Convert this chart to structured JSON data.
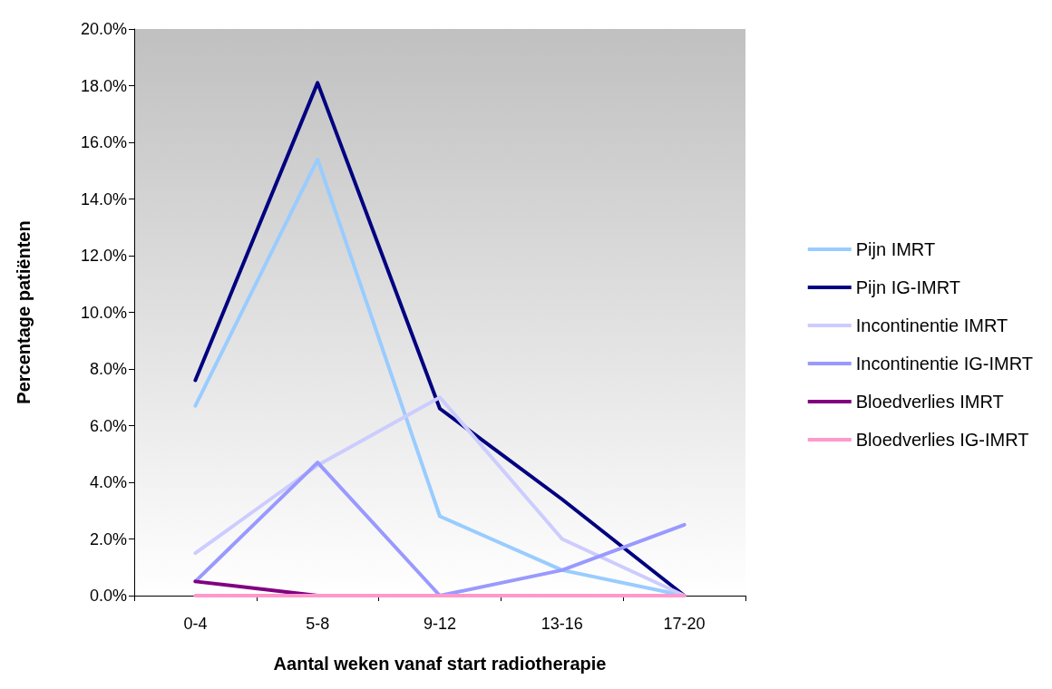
{
  "chart_data": {
    "type": "line",
    "xlabel": "Aantal weken vanaf start radiotherapie",
    "ylabel": "Percentage patiënten",
    "categories": [
      "0-4",
      "5-8",
      "9-12",
      "13-16",
      "17-20"
    ],
    "ylim": [
      0,
      20
    ],
    "yticks": [
      {
        "value": 0,
        "label": "0.0%"
      },
      {
        "value": 2,
        "label": "2.0%"
      },
      {
        "value": 4,
        "label": "4.0%"
      },
      {
        "value": 6,
        "label": "6.0%"
      },
      {
        "value": 8,
        "label": "8.0%"
      },
      {
        "value": 10,
        "label": "10.0%"
      },
      {
        "value": 12,
        "label": "12.0%"
      },
      {
        "value": 14,
        "label": "14.0%"
      },
      {
        "value": 16,
        "label": "16.0%"
      },
      {
        "value": 18,
        "label": "18.0%"
      },
      {
        "value": 20,
        "label": "20.0%"
      }
    ],
    "grid": false,
    "legend": "right",
    "marker": "none",
    "line_style": "solid",
    "series": [
      {
        "name": "Pijn IMRT",
        "color": "#99ccff",
        "values": [
          6.7,
          15.4,
          2.8,
          0.9,
          0
        ]
      },
      {
        "name": "Pijn IG-IMRT",
        "color": "#000080",
        "values": [
          7.6,
          18.1,
          6.6,
          3.4,
          0
        ]
      },
      {
        "name": "Incontinentie IMRT",
        "color": "#ccccff",
        "values": [
          1.5,
          4.6,
          7.0,
          2.0,
          0
        ]
      },
      {
        "name": "Incontinentie IG-IMRT",
        "color": "#9999ff",
        "values": [
          0.5,
          4.7,
          0,
          0.9,
          2.5
        ]
      },
      {
        "name": "Bloedverlies IMRT",
        "color": "#800080",
        "values": [
          0.5,
          0,
          null,
          null,
          null
        ]
      },
      {
        "name": "Bloedverlies IG-IMRT",
        "color": "#ff99cc",
        "values": [
          0,
          0,
          0,
          0,
          0
        ]
      }
    ]
  }
}
